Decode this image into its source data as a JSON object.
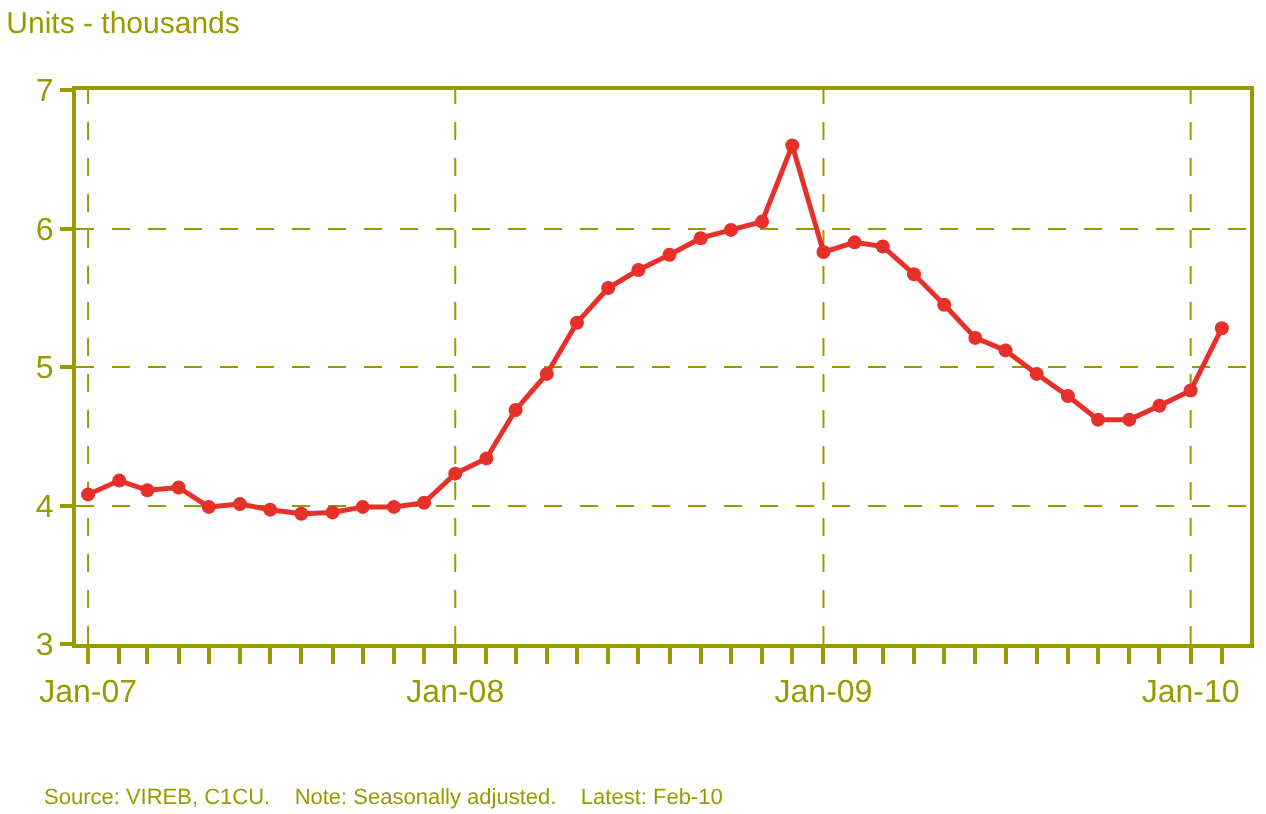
{
  "chart_data": {
    "type": "line",
    "title": "Units - thousands",
    "x": [
      "2007-01",
      "2007-02",
      "2007-03",
      "2007-04",
      "2007-05",
      "2007-06",
      "2007-07",
      "2007-08",
      "2007-09",
      "2007-10",
      "2007-11",
      "2007-12",
      "2008-01",
      "2008-02",
      "2008-03",
      "2008-04",
      "2008-05",
      "2008-06",
      "2008-07",
      "2008-08",
      "2008-09",
      "2008-10",
      "2008-11",
      "2008-12",
      "2009-01",
      "2009-02",
      "2009-03",
      "2009-04",
      "2009-05",
      "2009-06",
      "2009-07",
      "2009-08",
      "2009-09",
      "2009-10",
      "2009-11",
      "2009-12",
      "2010-01",
      "2010-02"
    ],
    "series": [
      {
        "color": "#e8302a",
        "values": [
          4.08,
          4.18,
          4.11,
          4.13,
          3.99,
          4.01,
          3.97,
          3.94,
          3.95,
          3.99,
          3.99,
          4.02,
          4.23,
          4.34,
          4.69,
          4.95,
          5.32,
          5.57,
          5.7,
          5.81,
          5.93,
          5.99,
          6.05,
          6.6,
          5.83,
          5.9,
          5.87,
          5.67,
          5.45,
          5.21,
          5.12,
          4.95,
          4.79,
          4.62,
          4.62,
          4.72,
          4.83,
          5.28
        ]
      }
    ],
    "xlim": [
      "2006-12-20",
      "2010-03-01"
    ],
    "xticks": [
      {
        "value": "2007-01",
        "label": "Jan-07"
      },
      {
        "value": "2007-02",
        "label": null
      },
      {
        "value": "2007-03",
        "label": null
      },
      {
        "value": "2007-04",
        "label": null
      },
      {
        "value": "2007-05",
        "label": null
      },
      {
        "value": "2007-06",
        "label": null
      },
      {
        "value": "2007-07",
        "label": null
      },
      {
        "value": "2007-08",
        "label": null
      },
      {
        "value": "2007-09",
        "label": null
      },
      {
        "value": "2007-10",
        "label": null
      },
      {
        "value": "2007-11",
        "label": null
      },
      {
        "value": "2007-12",
        "label": null
      },
      {
        "value": "2008-01",
        "label": "Jan-08"
      },
      {
        "value": "2008-02",
        "label": null
      },
      {
        "value": "2008-03",
        "label": null
      },
      {
        "value": "2008-04",
        "label": null
      },
      {
        "value": "2008-05",
        "label": null
      },
      {
        "value": "2008-06",
        "label": null
      },
      {
        "value": "2008-07",
        "label": null
      },
      {
        "value": "2008-08",
        "label": null
      },
      {
        "value": "2008-09",
        "label": null
      },
      {
        "value": "2008-10",
        "label": null
      },
      {
        "value": "2008-11",
        "label": null
      },
      {
        "value": "2008-12",
        "label": null
      },
      {
        "value": "2009-01",
        "label": "Jan-09"
      },
      {
        "value": "2009-02",
        "label": null
      },
      {
        "value": "2009-03",
        "label": null
      },
      {
        "value": "2009-04",
        "label": null
      },
      {
        "value": "2009-05",
        "label": null
      },
      {
        "value": "2009-06",
        "label": null
      },
      {
        "value": "2009-07",
        "label": null
      },
      {
        "value": "2009-08",
        "label": null
      },
      {
        "value": "2009-09",
        "label": null
      },
      {
        "value": "2009-10",
        "label": null
      },
      {
        "value": "2009-11",
        "label": null
      },
      {
        "value": "2009-12",
        "label": null
      },
      {
        "value": "2010-01",
        "label": "Jan-10"
      },
      {
        "value": "2010-02",
        "label": null
      }
    ],
    "ylim": [
      3,
      7
    ],
    "yticks": [
      3,
      4,
      5,
      6,
      7
    ],
    "grid": true,
    "marker": "circle",
    "line_style": "solid",
    "legend": false,
    "annotations": [
      "Source: VIREB, C1CU.    Note: Seasonally adjusted.    Latest: Feb-10"
    ]
  }
}
